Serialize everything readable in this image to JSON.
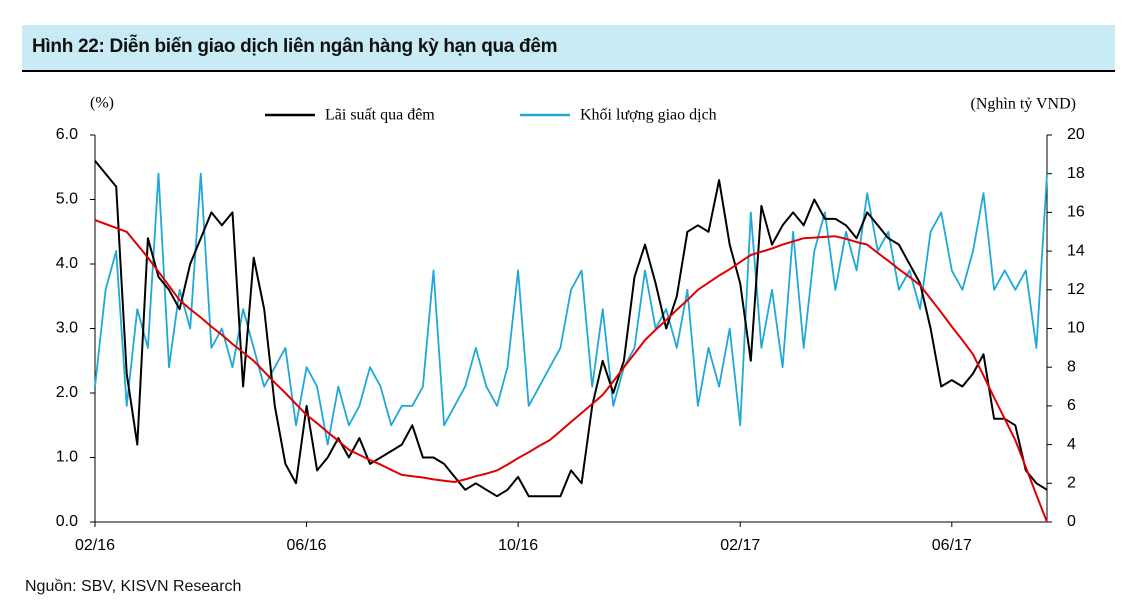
{
  "header": {
    "title": "Hình 22: Diễn biến giao dịch liên ngân hàng kỳ hạn qua đêm"
  },
  "chart_data": {
    "type": "line",
    "ylabel": "(%)",
    "y2label": "(Nghìn tỷ VND)",
    "categories": [
      "02/16",
      null,
      null,
      null,
      null,
      null,
      null,
      null,
      null,
      null,
      null,
      null,
      null,
      null,
      null,
      null,
      null,
      null,
      null,
      null,
      "06/16",
      null,
      null,
      null,
      null,
      null,
      null,
      null,
      null,
      null,
      null,
      null,
      null,
      null,
      null,
      null,
      null,
      null,
      null,
      null,
      "10/16",
      null,
      null,
      null,
      null,
      null,
      null,
      null,
      null,
      null,
      null,
      null,
      null,
      null,
      null,
      null,
      null,
      null,
      null,
      null,
      null,
      "02/17",
      null,
      null,
      null,
      null,
      null,
      null,
      null,
      null,
      null,
      null,
      null,
      null,
      null,
      null,
      null,
      null,
      null,
      null,
      null,
      "06/17",
      null,
      null,
      null,
      null,
      null,
      null,
      null,
      null,
      null
    ],
    "ylim": [
      0,
      6
    ],
    "yticks": [
      {
        "value": 0,
        "label": "0.0"
      },
      {
        "value": 1,
        "label": "1.0"
      },
      {
        "value": 2,
        "label": "2.0"
      },
      {
        "value": 3,
        "label": "3.0"
      },
      {
        "value": 4,
        "label": "4.0"
      },
      {
        "value": 5,
        "label": "5.0"
      },
      {
        "value": 6,
        "label": "6.0"
      }
    ],
    "y2lim": [
      0,
      20
    ],
    "y2ticks": [
      0,
      2,
      4,
      6,
      8,
      10,
      12,
      14,
      16,
      18,
      20
    ],
    "grid": false,
    "legend": "top",
    "series": [
      {
        "name": "Lãi suất qua đêm",
        "color": "#000000",
        "values": [
          5.6,
          5.4,
          5.2,
          2.3,
          1.2,
          4.4,
          3.8,
          3.6,
          3.3,
          4.0,
          4.4,
          4.8,
          4.6,
          4.8,
          2.1,
          4.1,
          3.3,
          1.8,
          0.9,
          0.6,
          1.8,
          0.8,
          1.0,
          1.3,
          1.0,
          1.3,
          0.9,
          1.0,
          1.1,
          1.2,
          1.5,
          1.0,
          1.0,
          0.9,
          0.7,
          0.5,
          0.6,
          0.5,
          0.4,
          0.5,
          0.7,
          0.4,
          0.4,
          0.4,
          0.4,
          0.8,
          0.6,
          1.8,
          2.5,
          2.0,
          2.5,
          3.8,
          4.3,
          3.7,
          3.0,
          3.5,
          4.5,
          4.6,
          4.5,
          5.3,
          4.3,
          3.7,
          2.5,
          4.9,
          4.3,
          4.6,
          4.8,
          4.6,
          5.0,
          4.7,
          4.7,
          4.6,
          4.4,
          4.8,
          4.6,
          4.4,
          4.3,
          4.0,
          3.7,
          3.0,
          2.1,
          2.2,
          2.1,
          2.3,
          2.6,
          1.6,
          1.6,
          1.5,
          0.8,
          0.6,
          0.5
        ]
      },
      {
        "name": "Khối lượng giao dịch",
        "color": "#1fa8d8",
        "axis": "y2",
        "values": [
          7,
          12,
          14,
          6,
          11,
          9,
          18,
          8,
          12,
          10,
          18,
          9,
          10,
          8,
          11,
          9,
          7,
          8,
          9,
          5,
          8,
          7,
          4,
          7,
          5,
          6,
          8,
          7,
          5,
          6,
          6,
          7,
          13,
          5,
          6,
          7,
          9,
          7,
          6,
          8,
          13,
          6,
          7,
          8,
          9,
          12,
          13,
          7,
          11,
          6,
          8,
          9,
          13,
          10,
          11,
          9,
          12,
          6,
          9,
          7,
          10,
          5,
          16,
          9,
          12,
          8,
          15,
          9,
          14,
          16,
          12,
          15,
          13,
          17,
          14,
          15,
          12,
          13,
          11,
          15,
          16,
          13,
          12,
          14,
          17,
          12,
          13,
          12,
          13,
          9,
          18
        ]
      }
    ],
    "trend_line": {
      "color": "#e00000",
      "values": [
        4.68,
        4.62,
        4.56,
        4.5,
        4.3,
        4.1,
        3.88,
        3.66,
        3.44,
        3.3,
        3.17,
        3.03,
        2.9,
        2.76,
        2.63,
        2.5,
        2.33,
        2.16,
        2.0,
        1.83,
        1.66,
        1.53,
        1.39,
        1.26,
        1.12,
        1.04,
        0.96,
        0.89,
        0.81,
        0.73,
        0.71,
        0.69,
        0.66,
        0.64,
        0.62,
        0.66,
        0.71,
        0.75,
        0.8,
        0.89,
        0.99,
        1.08,
        1.18,
        1.27,
        1.41,
        1.55,
        1.69,
        1.83,
        1.97,
        2.18,
        2.4,
        2.61,
        2.82,
        2.98,
        3.13,
        3.29,
        3.44,
        3.6,
        3.71,
        3.82,
        3.92,
        4.03,
        4.14,
        4.19,
        4.24,
        4.3,
        4.35,
        4.4,
        4.41,
        4.42,
        4.43,
        4.39,
        4.34,
        4.3,
        4.17,
        4.05,
        3.92,
        3.8,
        3.67,
        3.46,
        3.25,
        3.03,
        2.82,
        2.6,
        2.27,
        1.93,
        1.6,
        1.27,
        0.85,
        0.42,
        0
      ]
    }
  },
  "footer": {
    "source": "Nguồn: SBV, KISVN Research"
  }
}
